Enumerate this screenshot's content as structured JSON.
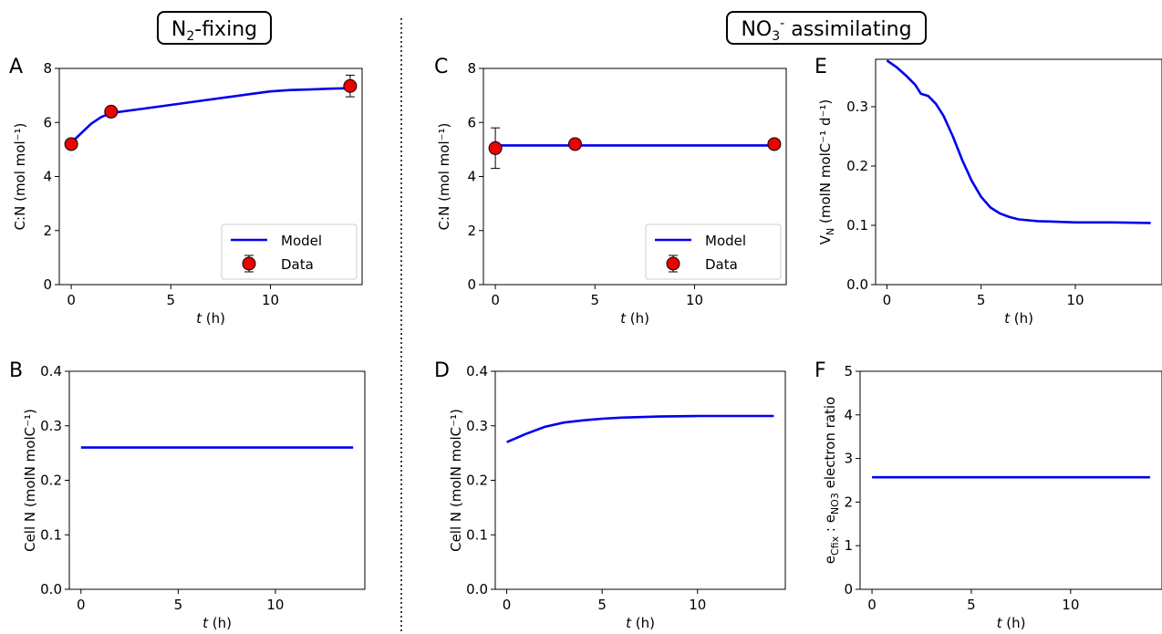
{
  "groups": [
    {
      "main": "N",
      "sub": "2",
      "sup": "",
      "rest": "-fixing"
    },
    {
      "main": "NO",
      "sub": "3",
      "sup": "-",
      "rest": " assimilating"
    }
  ],
  "colors": {
    "model": "#0000ee",
    "data_fill": "#ee0000",
    "axis": "#000000"
  },
  "legend_labels": {
    "model": "Model",
    "data": "Data"
  },
  "chart_data": [
    {
      "panel": "A",
      "type": "line",
      "xlabel": "t (h)",
      "ylabel": "C:N (mol mol⁻¹)",
      "xlim": [
        -0.6,
        14.6
      ],
      "ylim": [
        0,
        8
      ],
      "xticks": [
        0,
        5,
        10
      ],
      "yticks": [
        0,
        2,
        4,
        6,
        8
      ],
      "ytick_labels": [
        "0",
        "2",
        "4",
        "6",
        "8"
      ],
      "legend": "lower-right",
      "series": [
        {
          "name": "Model",
          "kind": "line",
          "x": [
            0,
            0.5,
            1,
            1.5,
            2,
            4,
            6,
            8,
            9,
            10,
            11,
            12,
            13,
            14
          ],
          "y": [
            5.25,
            5.6,
            5.95,
            6.2,
            6.35,
            6.55,
            6.75,
            6.95,
            7.05,
            7.15,
            7.2,
            7.22,
            7.25,
            7.27
          ]
        },
        {
          "name": "Data",
          "kind": "points",
          "x": [
            0,
            2,
            14
          ],
          "y": [
            5.2,
            6.4,
            7.35
          ],
          "err": [
            0.1,
            0.1,
            0.4
          ]
        }
      ]
    },
    {
      "panel": "B",
      "type": "line",
      "xlabel": "t (h)",
      "ylabel": "Cell N (molN molC⁻¹)",
      "xlim": [
        -0.6,
        14.6
      ],
      "ylim": [
        0,
        0.4
      ],
      "xticks": [
        0,
        5,
        10
      ],
      "yticks": [
        0,
        0.1,
        0.2,
        0.3,
        0.4
      ],
      "ytick_labels": [
        "0.0",
        "0.1",
        "0.2",
        "0.3",
        "0.4"
      ],
      "series": [
        {
          "name": "",
          "kind": "line",
          "x": [
            0,
            14
          ],
          "y": [
            0.26,
            0.26
          ]
        }
      ]
    },
    {
      "panel": "C",
      "type": "line",
      "xlabel": "t (h)",
      "ylabel": "C:N (mol mol⁻¹)",
      "xlim": [
        -0.6,
        14.6
      ],
      "ylim": [
        0,
        8
      ],
      "xticks": [
        0,
        5,
        10
      ],
      "yticks": [
        0,
        2,
        4,
        6,
        8
      ],
      "ytick_labels": [
        "0",
        "2",
        "4",
        "6",
        "8"
      ],
      "legend": "lower-right",
      "series": [
        {
          "name": "Model",
          "kind": "line",
          "x": [
            0,
            14
          ],
          "y": [
            5.15,
            5.15
          ]
        },
        {
          "name": "Data",
          "kind": "points",
          "x": [
            0,
            4,
            14
          ],
          "y": [
            5.05,
            5.2,
            5.2
          ],
          "err": [
            0.75,
            0.1,
            0.1
          ]
        }
      ]
    },
    {
      "panel": "D",
      "type": "line",
      "xlabel": "t (h)",
      "ylabel": "Cell N (molN molC⁻¹)",
      "xlim": [
        -0.6,
        14.6
      ],
      "ylim": [
        0,
        0.4
      ],
      "xticks": [
        0,
        5,
        10
      ],
      "yticks": [
        0,
        0.1,
        0.2,
        0.3,
        0.4
      ],
      "ytick_labels": [
        "0.0",
        "0.1",
        "0.2",
        "0.3",
        "0.4"
      ],
      "series": [
        {
          "name": "",
          "kind": "line",
          "x": [
            0,
            1,
            2,
            3,
            4,
            5,
            6,
            8,
            10,
            12,
            14
          ],
          "y": [
            0.27,
            0.285,
            0.298,
            0.306,
            0.31,
            0.313,
            0.315,
            0.317,
            0.318,
            0.318,
            0.318
          ]
        }
      ]
    },
    {
      "panel": "E",
      "type": "line",
      "xlabel": "t (h)",
      "ylabel": "V_N (molN molC⁻¹ d⁻¹)",
      "xlim": [
        -0.6,
        14.6
      ],
      "ylim": [
        0,
        0.38
      ],
      "xticks": [
        0,
        5,
        10
      ],
      "yticks": [
        0,
        0.1,
        0.2,
        0.3
      ],
      "ytick_labels": [
        "0.0",
        "0.1",
        "0.2",
        "0.3"
      ],
      "series": [
        {
          "name": "",
          "kind": "line",
          "x": [
            0,
            0.5,
            1,
            1.5,
            1.8,
            2.2,
            2.6,
            3,
            3.5,
            4,
            4.5,
            5,
            5.5,
            6,
            6.5,
            7,
            8,
            9,
            10,
            12,
            14
          ],
          "y": [
            0.378,
            0.367,
            0.353,
            0.337,
            0.322,
            0.318,
            0.305,
            0.285,
            0.25,
            0.21,
            0.175,
            0.148,
            0.13,
            0.12,
            0.114,
            0.11,
            0.107,
            0.106,
            0.105,
            0.105,
            0.104
          ]
        }
      ]
    },
    {
      "panel": "F",
      "type": "line",
      "xlabel": "t (h)",
      "ylabel": "e_Cfix : e_NO3 electron ratio",
      "xlim": [
        -0.6,
        14.6
      ],
      "ylim": [
        0,
        5
      ],
      "xticks": [
        0,
        5,
        10
      ],
      "yticks": [
        0,
        1,
        2,
        3,
        4,
        5
      ],
      "ytick_labels": [
        "0",
        "1",
        "2",
        "3",
        "4",
        "5"
      ],
      "series": [
        {
          "name": "",
          "kind": "line",
          "x": [
            0,
            14
          ],
          "y": [
            2.57,
            2.57
          ]
        }
      ]
    }
  ]
}
